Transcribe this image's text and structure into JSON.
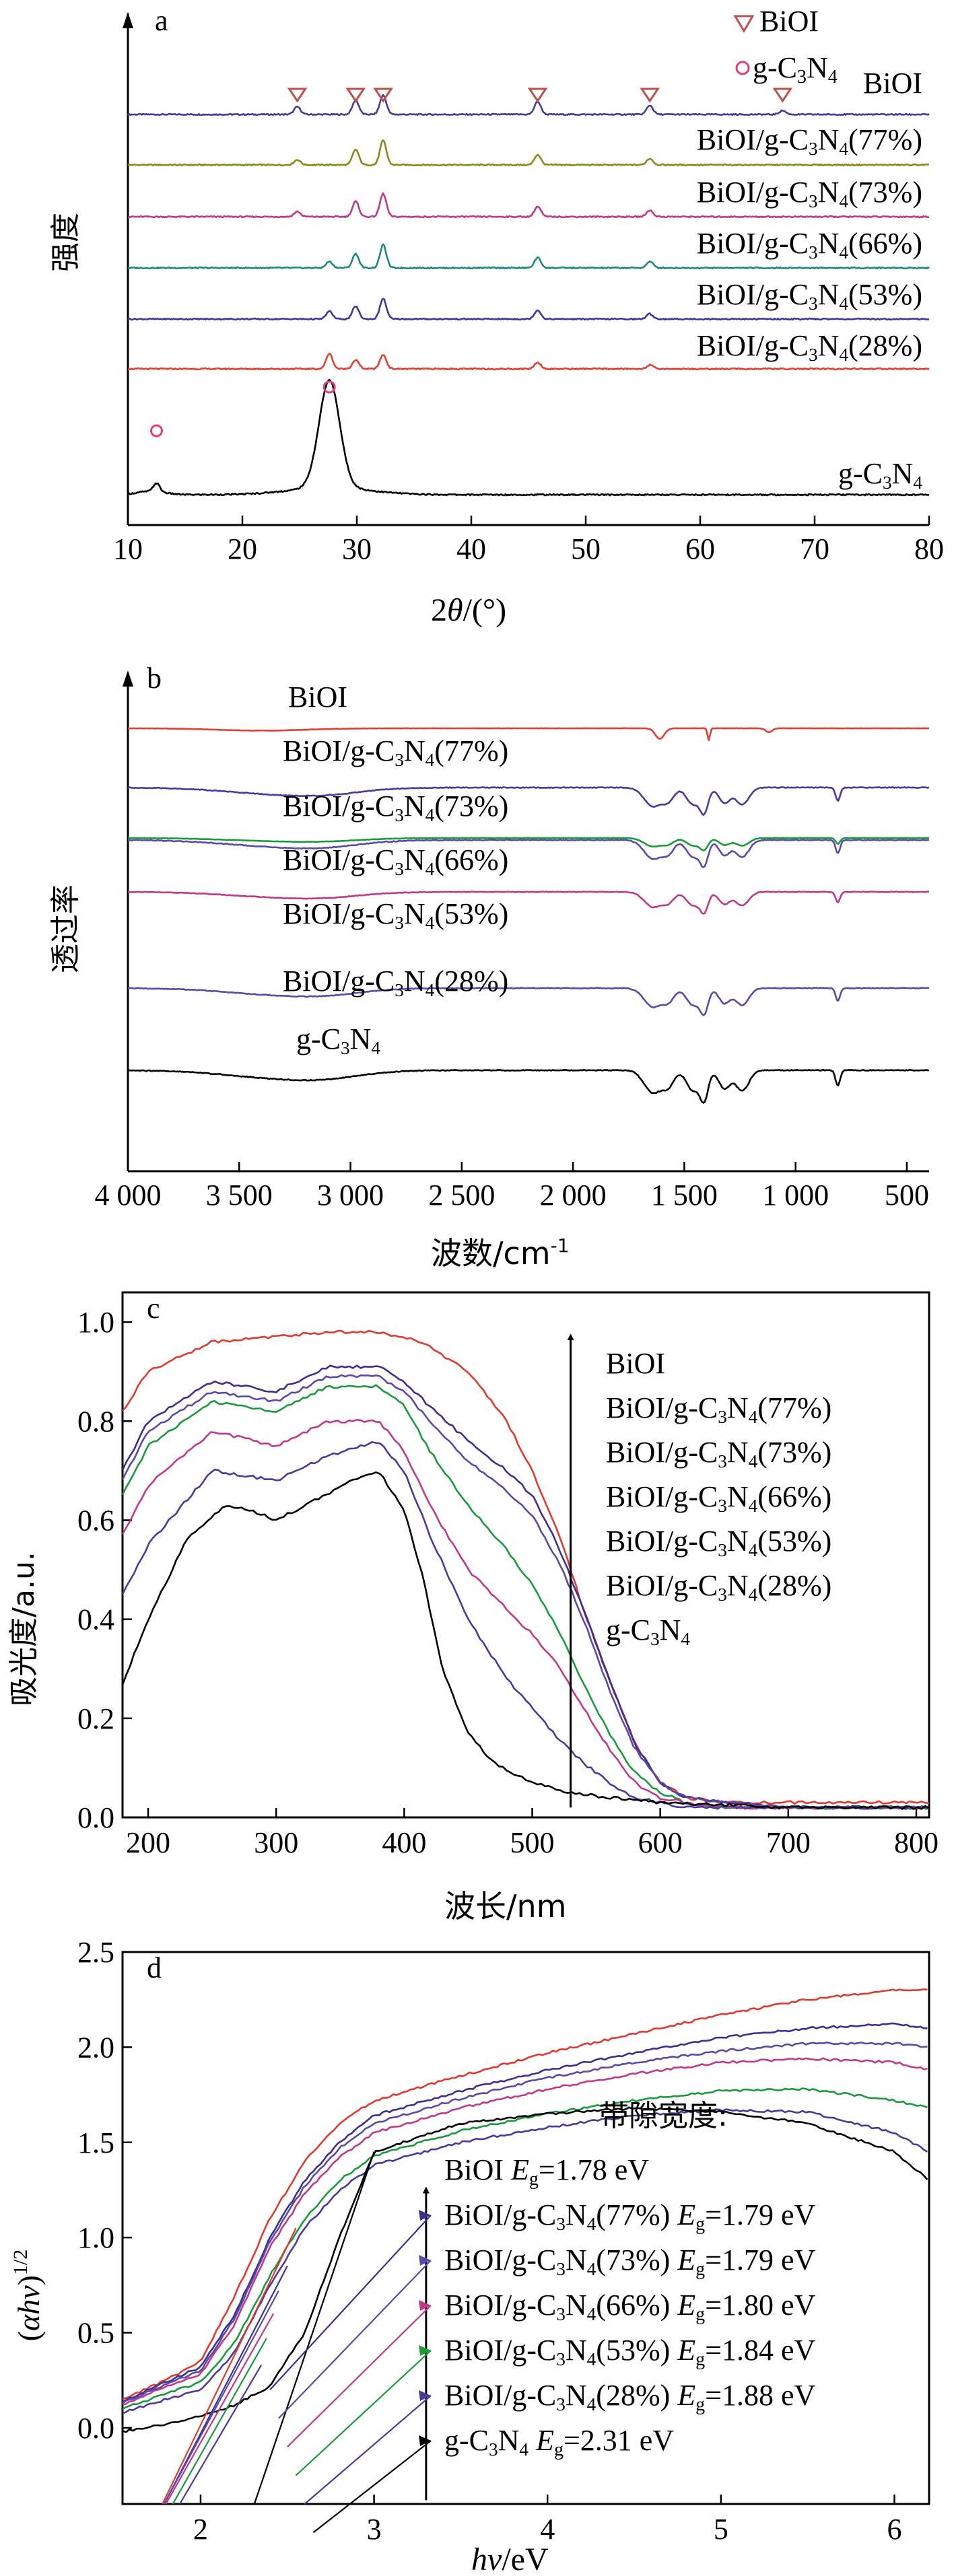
{
  "panels": [
    {
      "id": "a",
      "panel_label": "a",
      "ylabel": "强度",
      "xlabel_parts": [
        "2",
        "θ",
        "/(°)"
      ],
      "legend": [
        {
          "marker": "triangle",
          "name": "BiOI",
          "color": "#c0504d"
        },
        {
          "marker": "circle",
          "name": "g-C3N4",
          "color": "#e0407a"
        }
      ]
    },
    {
      "id": "b",
      "panel_label": "b",
      "ylabel": "透过率",
      "xlabel_parts": [
        "波数/cm",
        "-1"
      ]
    },
    {
      "id": "c",
      "panel_label": "c",
      "ylabel": "吸光度/a.u.",
      "xlabel": "波长/nm"
    },
    {
      "id": "d",
      "panel_label": "d",
      "ylabel_parts": [
        "(",
        "αhv",
        ")",
        "1/2"
      ],
      "xlabel_parts": [
        "hv",
        "/eV"
      ],
      "bandgap_title": "带隙宽度:"
    }
  ],
  "chart_data": [
    {
      "type": "line",
      "panel": "a",
      "xlabel": "2θ/(°)",
      "ylabel": "强度",
      "xlim": [
        10,
        80
      ],
      "xticks": [
        10,
        20,
        30,
        40,
        50,
        60,
        70,
        80
      ],
      "grid": false,
      "legend_position": "top-right",
      "peak_markers": {
        "BiOI": [
          24.8,
          29.9,
          32.3,
          45.8,
          55.6,
          67.2
        ],
        "g-C3N4": [
          12.5,
          27.6
        ]
      },
      "series": [
        {
          "name": "BiOI",
          "color": "#4a3a9a",
          "peaks": [
            [
              24.8,
              0.3
            ],
            [
              29.9,
              0.55
            ],
            [
              32.3,
              0.75
            ],
            [
              45.8,
              0.5
            ],
            [
              55.6,
              0.35
            ],
            [
              67.2,
              0.15
            ]
          ]
        },
        {
          "name": "BiOI/g-C3N4(77%)",
          "color": "#8a8a1a",
          "peaks": [
            [
              24.8,
              0.2
            ],
            [
              29.9,
              0.6
            ],
            [
              32.3,
              0.95
            ],
            [
              45.8,
              0.4
            ],
            [
              55.6,
              0.25
            ]
          ]
        },
        {
          "name": "BiOI/g-C3N4(73%)",
          "color": "#c0388a",
          "peaks": [
            [
              24.8,
              0.2
            ],
            [
              29.9,
              0.6
            ],
            [
              32.3,
              0.9
            ],
            [
              45.8,
              0.4
            ],
            [
              55.6,
              0.25
            ]
          ]
        },
        {
          "name": "BiOI/g-C3N4(66%)",
          "color": "#1a8a7a",
          "peaks": [
            [
              27.6,
              0.25
            ],
            [
              29.9,
              0.55
            ],
            [
              32.3,
              0.9
            ],
            [
              45.8,
              0.4
            ],
            [
              55.6,
              0.25
            ]
          ]
        },
        {
          "name": "BiOI/g-C3N4(53%)",
          "color": "#3a3a9a",
          "peaks": [
            [
              27.6,
              0.3
            ],
            [
              29.9,
              0.5
            ],
            [
              32.3,
              0.8
            ],
            [
              45.8,
              0.35
            ],
            [
              55.6,
              0.2
            ]
          ]
        },
        {
          "name": "BiOI/g-C3N4(28%)",
          "color": "#e04030",
          "peaks": [
            [
              27.6,
              0.6
            ],
            [
              29.9,
              0.35
            ],
            [
              32.3,
              0.55
            ],
            [
              45.8,
              0.25
            ],
            [
              55.6,
              0.15
            ]
          ]
        },
        {
          "name": "g-C3N4",
          "color": "#000000",
          "peaks": [
            [
              12.5,
              0.3
            ],
            [
              27.6,
              3.8
            ]
          ]
        }
      ]
    },
    {
      "type": "line",
      "panel": "b",
      "xlabel": "波数/cm-1",
      "ylabel": "透过率",
      "xlim": [
        4000,
        400
      ],
      "xticks": [
        4000,
        3500,
        3000,
        2500,
        2000,
        1500,
        1000,
        500
      ],
      "xtick_labels": [
        "4 000",
        "3 500",
        "3 000",
        "2 500",
        "2 000",
        "1 500",
        "1 000",
        "500"
      ],
      "grid": false,
      "series": [
        {
          "name": "BiOI",
          "color": "#e04030"
        },
        {
          "name": "BiOI/g-C3N4(77%)",
          "color": "#4a3a9a"
        },
        {
          "name": "BiOI/g-C3N4(73%)",
          "color": "#5a4aaa"
        },
        {
          "name": "BiOI/g-C3N4(66%)",
          "color": "#1a9a3a"
        },
        {
          "name": "BiOI/g-C3N4(53%)",
          "color": "#c0388a"
        },
        {
          "name": "BiOI/g-C3N4(28%)",
          "color": "#5a4aaa"
        },
        {
          "name": "g-C3N4",
          "color": "#000000"
        }
      ]
    },
    {
      "type": "line",
      "panel": "c",
      "xlabel": "波长/nm",
      "ylabel": "吸光度/a.u.",
      "xlim": [
        180,
        810
      ],
      "ylim": [
        0.0,
        1.0
      ],
      "xticks": [
        200,
        300,
        400,
        500,
        600,
        700,
        800
      ],
      "yticks": [
        0.0,
        0.2,
        0.4,
        0.6,
        0.8,
        1.0
      ],
      "ytick_labels": [
        "0.0",
        "0.2",
        "0.4",
        "0.6",
        "0.8",
        "1.0"
      ],
      "grid": false,
      "legend_position": "right",
      "arrow_x": 530,
      "series": [
        {
          "name": "BiOI",
          "color": "#e03a30",
          "x": [
            180,
            200,
            250,
            300,
            340,
            380,
            400,
            420,
            450,
            480,
            500,
            520,
            540,
            560,
            580,
            600,
            620,
            650,
            700,
            810
          ],
          "y": [
            0.82,
            0.9,
            0.96,
            0.97,
            0.98,
            0.98,
            0.97,
            0.95,
            0.9,
            0.8,
            0.7,
            0.58,
            0.42,
            0.28,
            0.15,
            0.07,
            0.04,
            0.03,
            0.03,
            0.03
          ]
        },
        {
          "name": "BiOI/g-C3N4(77%)",
          "color": "#3a3090",
          "x": [
            180,
            200,
            250,
            300,
            340,
            380,
            400,
            420,
            450,
            480,
            500,
            520,
            540,
            560,
            580,
            600,
            620,
            650,
            700,
            810
          ],
          "y": [
            0.7,
            0.8,
            0.88,
            0.86,
            0.91,
            0.91,
            0.88,
            0.83,
            0.76,
            0.7,
            0.65,
            0.55,
            0.42,
            0.28,
            0.15,
            0.07,
            0.04,
            0.03,
            0.02,
            0.02
          ]
        },
        {
          "name": "BiOI/g-C3N4(73%)",
          "color": "#5a4aa8",
          "x": [
            180,
            200,
            250,
            300,
            340,
            380,
            400,
            420,
            450,
            480,
            500,
            520,
            540,
            560,
            580,
            600,
            620,
            650,
            700,
            810
          ],
          "y": [
            0.68,
            0.78,
            0.86,
            0.84,
            0.89,
            0.89,
            0.86,
            0.8,
            0.72,
            0.66,
            0.61,
            0.52,
            0.4,
            0.26,
            0.14,
            0.07,
            0.04,
            0.03,
            0.02,
            0.02
          ]
        },
        {
          "name": "BiOI/g-C3N4(66%)",
          "color": "#1a9a3a",
          "x": [
            180,
            200,
            250,
            300,
            340,
            380,
            400,
            420,
            450,
            480,
            500,
            520,
            540,
            560,
            580,
            600,
            620,
            650,
            700,
            810
          ],
          "y": [
            0.65,
            0.75,
            0.84,
            0.82,
            0.87,
            0.87,
            0.83,
            0.74,
            0.63,
            0.54,
            0.47,
            0.38,
            0.27,
            0.17,
            0.09,
            0.05,
            0.03,
            0.02,
            0.02,
            0.02
          ]
        },
        {
          "name": "BiOI/g-C3N4(53%)",
          "color": "#c0388a",
          "x": [
            180,
            200,
            250,
            300,
            340,
            380,
            400,
            420,
            450,
            480,
            500,
            520,
            540,
            560,
            580,
            600,
            620,
            650,
            700,
            810
          ],
          "y": [
            0.57,
            0.67,
            0.78,
            0.75,
            0.8,
            0.8,
            0.74,
            0.63,
            0.5,
            0.42,
            0.37,
            0.31,
            0.22,
            0.14,
            0.07,
            0.04,
            0.03,
            0.02,
            0.02,
            0.02
          ]
        },
        {
          "name": "BiOI/g-C3N4(28%)",
          "color": "#4a3a9a",
          "x": [
            180,
            200,
            250,
            300,
            340,
            380,
            400,
            420,
            450,
            480,
            500,
            520,
            540,
            560,
            580,
            600,
            620,
            650,
            700,
            810
          ],
          "y": [
            0.45,
            0.55,
            0.7,
            0.68,
            0.73,
            0.76,
            0.7,
            0.57,
            0.4,
            0.28,
            0.22,
            0.16,
            0.11,
            0.07,
            0.04,
            0.03,
            0.02,
            0.02,
            0.02,
            0.02
          ]
        },
        {
          "name": "g-C3N4",
          "color": "#000000",
          "x": [
            180,
            200,
            230,
            260,
            280,
            300,
            330,
            360,
            380,
            400,
            415,
            430,
            450,
            470,
            500,
            530,
            560,
            600,
            700,
            810
          ],
          "y": [
            0.27,
            0.4,
            0.56,
            0.63,
            0.62,
            0.6,
            0.64,
            0.68,
            0.7,
            0.62,
            0.48,
            0.3,
            0.17,
            0.11,
            0.07,
            0.05,
            0.04,
            0.03,
            0.02,
            0.02
          ]
        }
      ]
    },
    {
      "type": "line",
      "panel": "d",
      "xlabel": "hv/eV",
      "ylabel": "(αhv)1/2",
      "xlim": [
        1.55,
        6.2
      ],
      "ylim": [
        -0.4,
        2.5
      ],
      "xticks": [
        2,
        3,
        4,
        5,
        6
      ],
      "yticks": [
        0.0,
        0.5,
        1.0,
        1.5,
        2.0,
        2.5
      ],
      "ytick_labels": [
        "0.0",
        "0.5",
        "1.0",
        "1.5",
        "2.0",
        "2.5"
      ],
      "grid": false,
      "arrow_x": 3.3,
      "series": [
        {
          "name": "BiOI",
          "color": "#e03a30",
          "bandgap": "1.78 eV",
          "x": [
            1.55,
            1.8,
            2.0,
            2.2,
            2.4,
            2.6,
            2.8,
            3.0,
            3.5,
            4.0,
            4.5,
            5.0,
            5.5,
            6.0,
            6.2
          ],
          "y": [
            0.15,
            0.25,
            0.35,
            0.7,
            1.1,
            1.4,
            1.6,
            1.72,
            1.85,
            1.97,
            2.07,
            2.17,
            2.25,
            2.3,
            2.3
          ]
        },
        {
          "name": "BiOI/g-C3N4(77%)",
          "color": "#3a3090",
          "bandgap": "1.79 eV",
          "x": [
            1.55,
            1.8,
            2.0,
            2.2,
            2.4,
            2.6,
            2.8,
            3.0,
            3.5,
            4.0,
            4.5,
            5.0,
            5.5,
            6.0,
            6.2
          ],
          "y": [
            0.14,
            0.24,
            0.32,
            0.6,
            1.0,
            1.3,
            1.5,
            1.64,
            1.77,
            1.88,
            1.97,
            2.05,
            2.1,
            2.12,
            2.1
          ]
        },
        {
          "name": "BiOI/g-C3N4(73%)",
          "color": "#5a4aa8",
          "bandgap": "1.79 eV",
          "x": [
            1.55,
            1.8,
            2.0,
            2.2,
            2.4,
            2.6,
            2.8,
            3.0,
            3.5,
            4.0,
            4.5,
            5.0,
            5.5,
            6.0,
            6.2
          ],
          "y": [
            0.13,
            0.23,
            0.3,
            0.58,
            0.98,
            1.27,
            1.47,
            1.6,
            1.73,
            1.84,
            1.92,
            1.98,
            2.02,
            2.02,
            2.0
          ]
        },
        {
          "name": "BiOI/g-C3N4(66%)",
          "color": "#c0388a",
          "bandgap": "1.80 eV",
          "x": [
            1.55,
            1.8,
            2.0,
            2.2,
            2.4,
            2.6,
            2.8,
            3.0,
            3.5,
            4.0,
            4.5,
            5.0,
            5.5,
            6.0,
            6.2
          ],
          "y": [
            0.12,
            0.22,
            0.28,
            0.55,
            0.95,
            1.23,
            1.42,
            1.55,
            1.68,
            1.78,
            1.86,
            1.92,
            1.94,
            1.92,
            1.88
          ]
        },
        {
          "name": "BiOI/g-C3N4(53%)",
          "color": "#1a9a3a",
          "bandgap": "1.84 eV",
          "x": [
            1.55,
            1.8,
            2.0,
            2.2,
            2.4,
            2.6,
            2.8,
            3.0,
            3.5,
            4.0,
            4.5,
            5.0,
            5.5,
            6.0,
            6.2
          ],
          "y": [
            0.1,
            0.18,
            0.24,
            0.45,
            0.8,
            1.1,
            1.3,
            1.43,
            1.56,
            1.65,
            1.72,
            1.77,
            1.78,
            1.72,
            1.68
          ]
        },
        {
          "name": "BiOI/g-C3N4(28%)",
          "color": "#4a3a9a",
          "bandgap": "1.88 eV",
          "x": [
            1.55,
            1.8,
            2.0,
            2.2,
            2.4,
            2.6,
            2.8,
            3.0,
            3.5,
            4.0,
            4.5,
            5.0,
            5.5,
            6.0,
            6.2
          ],
          "y": [
            0.08,
            0.15,
            0.2,
            0.4,
            0.75,
            1.05,
            1.25,
            1.38,
            1.5,
            1.58,
            1.64,
            1.67,
            1.66,
            1.55,
            1.45
          ]
        },
        {
          "name": "g-C3N4",
          "color": "#000000",
          "bandgap": "2.31 eV",
          "x": [
            1.55,
            1.8,
            2.0,
            2.2,
            2.4,
            2.6,
            2.8,
            3.0,
            3.5,
            4.0,
            4.5,
            5.0,
            5.5,
            6.0,
            6.2
          ],
          "y": [
            -0.02,
            0.02,
            0.06,
            0.12,
            0.22,
            0.5,
            1.0,
            1.45,
            1.6,
            1.65,
            1.68,
            1.66,
            1.6,
            1.45,
            1.3
          ]
        }
      ]
    }
  ]
}
